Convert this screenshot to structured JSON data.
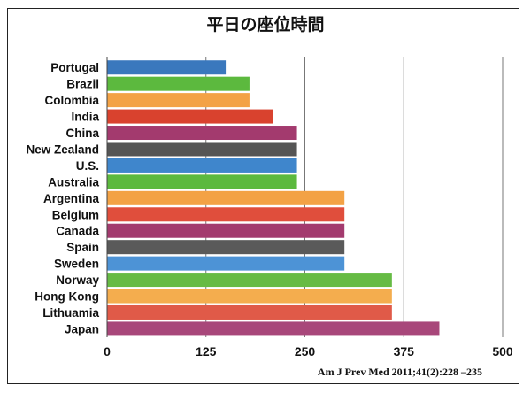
{
  "chart_data": {
    "type": "bar",
    "orientation": "horizontal",
    "title": "平日の座位時間",
    "categories": [
      "Portugal",
      "Brazil",
      "Colombia",
      "India",
      "China",
      "New Zealand",
      "U.S.",
      "Australia",
      "Argentina",
      "Belgium",
      "Canada",
      "Spain",
      "Sweden",
      "Norway",
      "Hong Kong",
      "Lithuamia",
      "Japan"
    ],
    "values": [
      150,
      180,
      180,
      210,
      240,
      240,
      240,
      240,
      300,
      300,
      300,
      300,
      300,
      360,
      360,
      360,
      420
    ],
    "colors": [
      "#3a78bd",
      "#5cb93e",
      "#f3a245",
      "#d9422e",
      "#a33a6e",
      "#555555",
      "#3f86cc",
      "#5cb93e",
      "#f3a245",
      "#e04e3c",
      "#a33a6e",
      "#5a5a5a",
      "#4d93d6",
      "#66bb44",
      "#f4ad4e",
      "#e05a48",
      "#a8477a"
    ],
    "xlim": [
      0,
      500
    ],
    "xticks": [
      "0",
      "125",
      "250",
      "375",
      "500"
    ],
    "grid": true,
    "xlabel": "",
    "ylabel": ""
  },
  "source_note": "Am J Prev Med 2011;41(2):228 –235"
}
